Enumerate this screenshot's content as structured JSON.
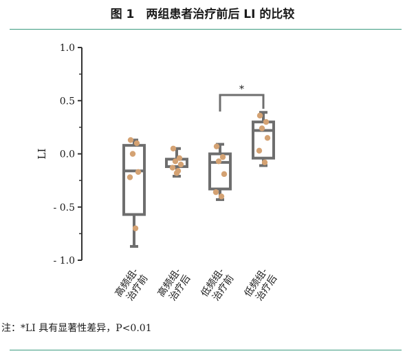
{
  "figure": {
    "title": "图 1　两组患者治疗前后 LI 的比较",
    "note": "注：*LI 具有显著性差异，P<0.01"
  },
  "colors": {
    "box": "#6e6e6e",
    "point": "#d4a273",
    "rule": "#3a9a7e"
  },
  "chart_data": {
    "type": "box",
    "title": "图 1　两组患者治疗前后 LI 的比较",
    "xlabel": "",
    "ylabel": "LI",
    "ylim": [
      -1.0,
      1.0
    ],
    "yticks": [
      1.0,
      0.5,
      0.0,
      -0.5,
      -1.0
    ],
    "ytick_labels": [
      "1.0",
      "0.5",
      "0.0",
      "- 0.5",
      "- 1.0"
    ],
    "categories": [
      "高频组-治疗前",
      "高频组-治疗后",
      "低频组-治疗前",
      "低频组-治疗后"
    ],
    "category_lines": [
      [
        "高频组-",
        "治疗前"
      ],
      [
        "高频组-",
        "治疗后"
      ],
      [
        "低频组-",
        "治疗前"
      ],
      [
        "低频组-",
        "治疗后"
      ]
    ],
    "boxes": [
      {
        "min": -0.87,
        "q1": -0.57,
        "median": -0.16,
        "q3": 0.08,
        "max": 0.13
      },
      {
        "min": -0.21,
        "q1": -0.12,
        "median": -0.12,
        "q3": -0.05,
        "max": 0.05
      },
      {
        "min": -0.43,
        "q1": -0.33,
        "median": -0.08,
        "q3": 0.0,
        "max": 0.09
      },
      {
        "min": -0.11,
        "q1": -0.04,
        "median": 0.22,
        "q3": 0.3,
        "max": 0.39
      }
    ],
    "points": [
      [
        0.13,
        0.1,
        0.0,
        -0.17,
        -0.22,
        -0.7
      ],
      [
        0.05,
        -0.04,
        -0.07,
        -0.1,
        -0.13,
        -0.16,
        -0.18
      ],
      [
        0.07,
        -0.03,
        -0.07,
        -0.19,
        -0.36,
        -0.4
      ],
      [
        0.36,
        0.3,
        0.24,
        0.15,
        0.03,
        -0.08
      ]
    ],
    "significance": {
      "from": 2,
      "to": 3,
      "label": "*"
    }
  }
}
